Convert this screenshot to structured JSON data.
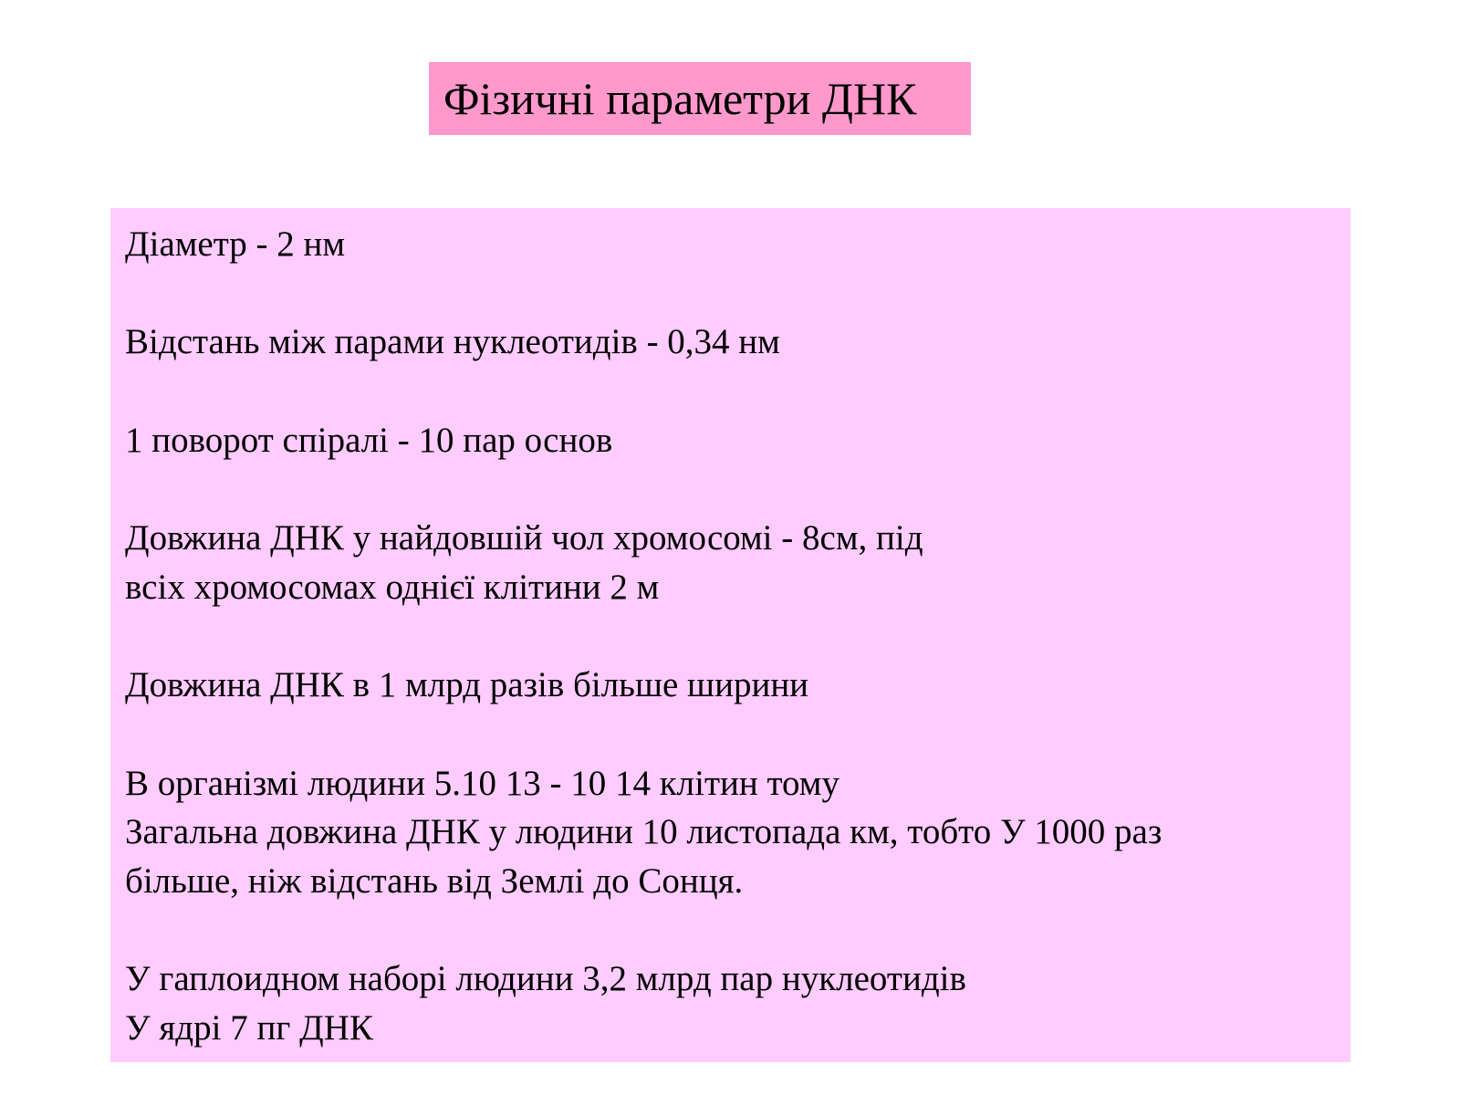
{
  "slide": {
    "title": "Фізичні параметри ДНК",
    "colors": {
      "title_background": "#ff99cc",
      "content_background": "#ffccff"
    },
    "lines": [
      "Діаметр - 2 нм",
      "",
      "Відстань між парами нуклеотидів  - 0,34 нм",
      "",
      "1 поворот спіралі - 10 пар основ",
      "",
      "Довжина ДНК у найдовшій чол хромосомі  - 8см, під",
      "всіх хромосомах однієї клітини 2 м",
      "",
      "Довжина ДНК в 1 млрд разів більше ширини",
      "",
      "В організмі людини 5.10 13 - 10 14 клітин тому",
      "Загальна довжина ДНК у людини 10 листопада км, тобто  У 1000 раз",
      "більше, ніж відстань від Землі до Сонця.",
      "",
      "У гаплоидном наборі людини 3,2 млрд пар нуклеотидів",
      "У ядрі 7 пг ДНК"
    ]
  }
}
